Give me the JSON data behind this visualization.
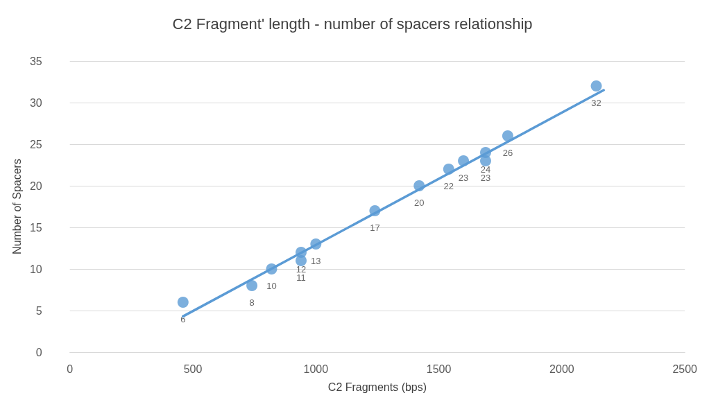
{
  "chart_data": {
    "type": "scatter",
    "title": "C2 Fragment' length - number of spacers relationship",
    "xlabel": "C2 Fragments (bps)",
    "ylabel": "Number of Spacers",
    "xlim": [
      0,
      2500
    ],
    "xticks": [
      0,
      500,
      1000,
      1500,
      2000,
      2500
    ],
    "ylim": [
      0,
      35
    ],
    "yticks": [
      0,
      5,
      10,
      15,
      20,
      25,
      30,
      35
    ],
    "grid": "y",
    "series": [
      {
        "color": "#5b9bd5",
        "marker": "circle",
        "x": [
          460,
          740,
          820,
          940,
          940,
          1000,
          1240,
          1420,
          1540,
          1600,
          1690,
          1690,
          1780,
          2140
        ],
        "values": [
          6,
          8,
          10,
          12,
          11,
          13,
          17,
          20,
          22,
          23,
          24,
          23,
          26,
          32
        ],
        "value_labels": [
          "6",
          "8",
          "10",
          "12",
          "11",
          "13",
          "17",
          "20",
          "22",
          "23",
          "24",
          "23",
          "26",
          "32"
        ]
      },
      {
        "type": "line",
        "color": "#5b9bd5",
        "x": [
          460,
          2170
        ],
        "values": [
          4.3,
          31.5
        ]
      }
    ]
  }
}
